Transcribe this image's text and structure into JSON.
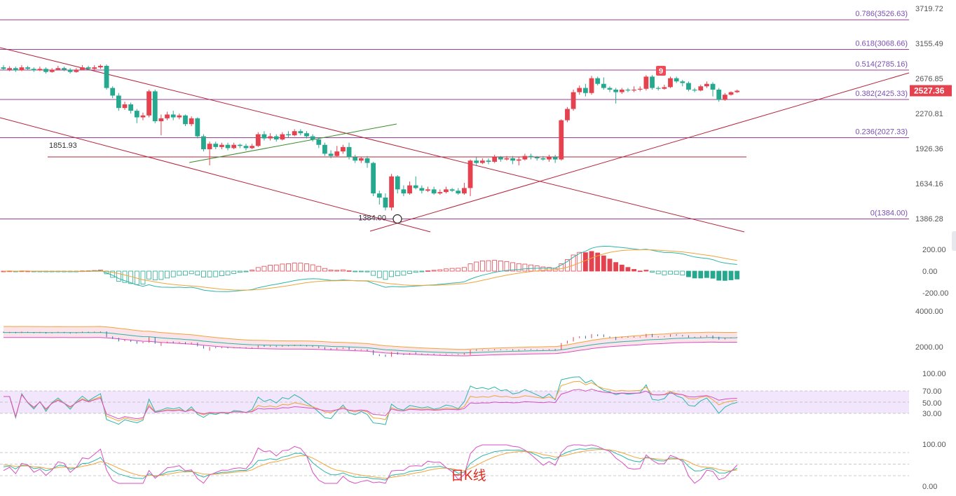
{
  "chart_data": {
    "type": "candlestick",
    "caption": "日K线",
    "colors": {
      "up": "#e5424f",
      "down": "#26a88f",
      "fib_line": "#9c3f96",
      "channel_line": "#b6233a",
      "green_trend": "#3a8c2b",
      "price_tag_bg": "#e5424f",
      "fib_label": "#7b4fb3",
      "tag9_bg": "#ef4a57"
    },
    "price_axis": {
      "scale": "log",
      "range": [
        1280,
        3780
      ],
      "ticks": [
        "3719.72",
        "3155.49",
        "2676.85",
        "2270.81",
        "1926.36",
        "1634.16",
        "1386.28"
      ],
      "tick_values": [
        3719.72,
        3155.49,
        2676.85,
        2270.81,
        1926.36,
        1634.16,
        1386.28
      ],
      "current_price_label": "2527.36",
      "current_price": 2527.36
    },
    "fibonacci": [
      {
        "label": "0.786(3526.63)",
        "price": 3526.63
      },
      {
        "label": "0.618(3068.66)",
        "price": 3068.66
      },
      {
        "label": "0.514(2785.16)",
        "price": 2785.16
      },
      {
        "label": "0.382(2425.33)",
        "price": 2425.33
      },
      {
        "label": "0.236(2027.33)",
        "price": 2027.33
      },
      {
        "label": "0(1384.00)",
        "price": 1384.0
      }
    ],
    "annotations": {
      "level_1851": {
        "label": "1851.93",
        "price": 1851.93
      },
      "low_1384": {
        "label": "1384.00",
        "price": 1384.0
      },
      "tag_9": {
        "label": "9"
      }
    },
    "candles_ohlc": [
      [
        2820,
        2800,
        2850,
        2780
      ],
      [
        2790,
        2810,
        2835,
        2770
      ],
      [
        2810,
        2780,
        2830,
        2760
      ],
      [
        2780,
        2820,
        2850,
        2770
      ],
      [
        2820,
        2800,
        2840,
        2790
      ],
      [
        2800,
        2780,
        2820,
        2760
      ],
      [
        2780,
        2800,
        2830,
        2770
      ],
      [
        2800,
        2760,
        2820,
        2740
      ],
      [
        2760,
        2790,
        2810,
        2750
      ],
      [
        2790,
        2810,
        2840,
        2780
      ],
      [
        2810,
        2790,
        2830,
        2770
      ],
      [
        2790,
        2760,
        2810,
        2740
      ],
      [
        2760,
        2790,
        2810,
        2750
      ],
      [
        2790,
        2820,
        2850,
        2780
      ],
      [
        2820,
        2800,
        2840,
        2780
      ],
      [
        2800,
        2820,
        2850,
        2790
      ],
      [
        2820,
        2840,
        2860,
        2800
      ],
      [
        2840,
        2560,
        2860,
        2540
      ],
      [
        2560,
        2470,
        2580,
        2440
      ],
      [
        2470,
        2330,
        2500,
        2300
      ],
      [
        2330,
        2370,
        2400,
        2310
      ],
      [
        2370,
        2300,
        2390,
        2270
      ],
      [
        2300,
        2230,
        2320,
        2170
      ],
      [
        2230,
        2250,
        2280,
        2200
      ],
      [
        2250,
        2520,
        2540,
        2230
      ],
      [
        2520,
        2190,
        2540,
        2170
      ],
      [
        2190,
        2220,
        2260,
        2050
      ],
      [
        2220,
        2260,
        2290,
        2200
      ],
      [
        2260,
        2230,
        2300,
        2200
      ],
      [
        2230,
        2250,
        2270,
        2210
      ],
      [
        2250,
        2160,
        2260,
        2140
      ],
      [
        2160,
        2220,
        2240,
        2140
      ],
      [
        2220,
        2040,
        2230,
        2020
      ],
      [
        2040,
        1920,
        2060,
        1900
      ],
      [
        1920,
        1970,
        1990,
        1780
      ],
      [
        1970,
        1940,
        1990,
        1920
      ],
      [
        1940,
        1960,
        1980,
        1920
      ],
      [
        1960,
        1930,
        1980,
        1910
      ],
      [
        1930,
        1960,
        1980,
        1920
      ],
      [
        1960,
        1950,
        1970,
        1930
      ],
      [
        1950,
        1930,
        1970,
        1910
      ],
      [
        1930,
        1950,
        1970,
        1920
      ],
      [
        1950,
        2060,
        2080,
        1940
      ],
      [
        2060,
        2020,
        2090,
        2000
      ],
      [
        2020,
        2040,
        2070,
        2000
      ],
      [
        2040,
        2010,
        2060,
        1990
      ],
      [
        2010,
        2060,
        2080,
        2000
      ],
      [
        2060,
        2050,
        2090,
        2030
      ],
      [
        2050,
        2090,
        2110,
        2040
      ],
      [
        2090,
        2070,
        2110,
        2050
      ],
      [
        2070,
        2040,
        2090,
        2020
      ],
      [
        2040,
        2010,
        2060,
        1990
      ],
      [
        2010,
        1960,
        2030,
        1930
      ],
      [
        1960,
        1880,
        1980,
        1860
      ],
      [
        1880,
        1860,
        1910,
        1840
      ],
      [
        1860,
        1900,
        1950,
        1850
      ],
      [
        1900,
        1940,
        1960,
        1880
      ],
      [
        1940,
        1850,
        1980,
        1830
      ],
      [
        1850,
        1820,
        1870,
        1800
      ],
      [
        1820,
        1840,
        1850,
        1800
      ],
      [
        1840,
        1800,
        1860,
        1760
      ],
      [
        1800,
        1560,
        1810,
        1540
      ],
      [
        1560,
        1530,
        1580,
        1480
      ],
      [
        1530,
        1460,
        1560,
        1440
      ],
      [
        1460,
        1690,
        1710,
        1440
      ],
      [
        1690,
        1590,
        1700,
        1560
      ],
      [
        1590,
        1560,
        1620,
        1540
      ],
      [
        1560,
        1620,
        1650,
        1550
      ],
      [
        1620,
        1600,
        1690,
        1590
      ],
      [
        1600,
        1580,
        1620,
        1560
      ],
      [
        1580,
        1590,
        1610,
        1570
      ],
      [
        1590,
        1560,
        1610,
        1550
      ],
      [
        1560,
        1570,
        1590,
        1550
      ],
      [
        1570,
        1590,
        1610,
        1560
      ],
      [
        1590,
        1580,
        1600,
        1570
      ],
      [
        1580,
        1560,
        1600,
        1550
      ],
      [
        1560,
        1600,
        1640,
        1550
      ],
      [
        1600,
        1820,
        1830,
        1540
      ],
      [
        1820,
        1800,
        1850,
        1780
      ],
      [
        1800,
        1820,
        1840,
        1790
      ],
      [
        1820,
        1810,
        1840,
        1790
      ],
      [
        1810,
        1850,
        1870,
        1800
      ],
      [
        1850,
        1830,
        1860,
        1810
      ],
      [
        1830,
        1840,
        1860,
        1820
      ],
      [
        1840,
        1820,
        1860,
        1790
      ],
      [
        1820,
        1830,
        1850,
        1780
      ],
      [
        1830,
        1860,
        1880,
        1820
      ],
      [
        1860,
        1850,
        1880,
        1830
      ],
      [
        1850,
        1840,
        1860,
        1820
      ],
      [
        1840,
        1830,
        1860,
        1820
      ],
      [
        1830,
        1850,
        1870,
        1810
      ],
      [
        1850,
        1830,
        1870,
        1800
      ],
      [
        1830,
        2200,
        2210,
        1820
      ],
      [
        2200,
        2320,
        2340,
        2180
      ],
      [
        2320,
        2510,
        2540,
        2300
      ],
      [
        2510,
        2560,
        2590,
        2480
      ],
      [
        2560,
        2500,
        2610,
        2460
      ],
      [
        2500,
        2680,
        2710,
        2480
      ],
      [
        2680,
        2610,
        2700,
        2590
      ],
      [
        2610,
        2560,
        2690,
        2540
      ],
      [
        2560,
        2540,
        2580,
        2510
      ],
      [
        2540,
        2510,
        2560,
        2380
      ],
      [
        2510,
        2540,
        2560,
        2490
      ],
      [
        2540,
        2530,
        2560,
        2510
      ],
      [
        2530,
        2540,
        2580,
        2510
      ],
      [
        2540,
        2550,
        2580,
        2520
      ],
      [
        2550,
        2700,
        2720,
        2530
      ],
      [
        2700,
        2560,
        2720,
        2540
      ],
      [
        2560,
        2550,
        2580,
        2530
      ],
      [
        2550,
        2570,
        2600,
        2540
      ],
      [
        2570,
        2680,
        2700,
        2560
      ],
      [
        2680,
        2640,
        2700,
        2620
      ],
      [
        2640,
        2620,
        2660,
        2580
      ],
      [
        2620,
        2540,
        2640,
        2520
      ],
      [
        2540,
        2530,
        2560,
        2510
      ],
      [
        2530,
        2580,
        2600,
        2520
      ],
      [
        2580,
        2610,
        2640,
        2560
      ],
      [
        2610,
        2540,
        2630,
        2460
      ],
      [
        2540,
        2420,
        2560,
        2400
      ],
      [
        2420,
        2480,
        2500,
        2410
      ],
      [
        2480,
        2510,
        2520,
        2470
      ],
      [
        2510,
        2527,
        2540,
        2500
      ]
    ],
    "macd": {
      "ticks": [
        "200.00",
        "0.00",
        "-200.00"
      ],
      "tick_values": [
        200,
        0,
        -200
      ]
    },
    "boll": {
      "ticks": [
        "4000.00",
        "2000.00"
      ],
      "tick_values": [
        4000,
        2000
      ]
    },
    "rsi": {
      "ticks": [
        "100.00",
        "70.00",
        "50.00",
        "30.00"
      ],
      "tick_values": [
        100,
        70,
        50,
        30
      ]
    },
    "kdj": {
      "ticks": [
        "100.00",
        "0.00"
      ],
      "tick_values": [
        100,
        0
      ]
    }
  }
}
